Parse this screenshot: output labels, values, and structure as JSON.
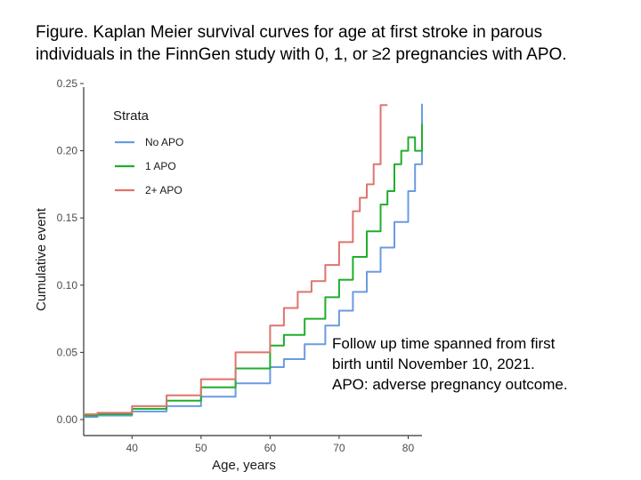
{
  "header": {
    "title_line1": "Figure. Kaplan Meier survival curves for age at first stroke in parous",
    "title_line2": "individuals in the FinnGen study with 0, 1, or ≥2 pregnancies with APO."
  },
  "note": {
    "line1": "Follow up time spanned from first",
    "line2": "birth until November 10, 2021.",
    "line3": "APO: adverse pregnancy outcome."
  },
  "chart_data": {
    "type": "line",
    "step": true,
    "xlabel": "Age, years",
    "ylabel": "Cumulative event",
    "xlim": [
      33,
      82
    ],
    "ylim": [
      0,
      0.25
    ],
    "x_ticks": [
      40,
      50,
      60,
      70,
      80
    ],
    "y_ticks": [
      0,
      0.05,
      0.1,
      0.15,
      0.2,
      0.25
    ],
    "y_tick_labels": [
      "0.00",
      "0.05",
      "0.10",
      "0.15",
      "0.20",
      "0.25"
    ],
    "grid": false,
    "legend": {
      "title": "Strata",
      "position": "top-left",
      "entries": [
        "No APO",
        "1 APO",
        "2+ APO"
      ]
    },
    "series": [
      {
        "name": "No APO",
        "color": "#6a9be0",
        "x": [
          33,
          35,
          40,
          45,
          50,
          55,
          60,
          62,
          65,
          68,
          70,
          72,
          74,
          76,
          78,
          80,
          81,
          82
        ],
        "y": [
          0.002,
          0.003,
          0.006,
          0.01,
          0.017,
          0.027,
          0.039,
          0.045,
          0.056,
          0.07,
          0.081,
          0.095,
          0.11,
          0.128,
          0.147,
          0.17,
          0.19,
          0.235
        ]
      },
      {
        "name": "1 APO",
        "color": "#1fae2c",
        "x": [
          33,
          35,
          40,
          45,
          50,
          55,
          60,
          62,
          65,
          68,
          70,
          72,
          74,
          76,
          77,
          78,
          79,
          80,
          81,
          82
        ],
        "y": [
          0.003,
          0.004,
          0.008,
          0.014,
          0.024,
          0.038,
          0.055,
          0.063,
          0.075,
          0.091,
          0.104,
          0.121,
          0.14,
          0.16,
          0.17,
          0.19,
          0.2,
          0.21,
          0.2,
          0.22
        ]
      },
      {
        "name": "2+ APO",
        "color": "#e0736e",
        "x": [
          33,
          35,
          40,
          45,
          50,
          55,
          60,
          62,
          64,
          66,
          68,
          70,
          72,
          73,
          74,
          75,
          76,
          77
        ],
        "y": [
          0.004,
          0.005,
          0.01,
          0.018,
          0.03,
          0.05,
          0.07,
          0.083,
          0.095,
          0.103,
          0.115,
          0.132,
          0.155,
          0.165,
          0.175,
          0.19,
          0.234,
          0.234
        ]
      }
    ]
  }
}
